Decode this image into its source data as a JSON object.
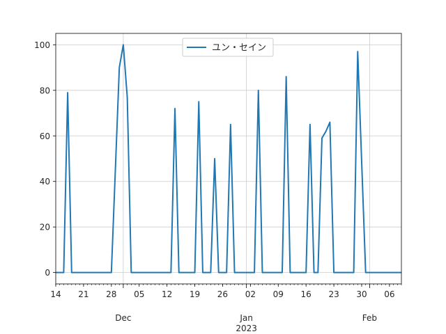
{
  "chart_data": {
    "type": "line",
    "series": [
      {
        "name": "ユン・セイン",
        "color": "#1f77b4",
        "x": [
          "2022-11-14",
          "2022-11-16",
          "2022-11-17",
          "2022-11-18",
          "2022-11-28",
          "2022-11-30",
          "2022-12-01",
          "2022-12-02",
          "2022-12-03",
          "2022-12-13",
          "2022-12-14",
          "2022-12-15",
          "2022-12-19",
          "2022-12-20",
          "2022-12-21",
          "2022-12-23",
          "2022-12-24",
          "2022-12-25",
          "2022-12-27",
          "2022-12-28",
          "2022-12-29",
          "2023-01-03",
          "2023-01-04",
          "2023-01-05",
          "2023-01-10",
          "2023-01-11",
          "2023-01-12",
          "2023-01-16",
          "2023-01-17",
          "2023-01-18",
          "2023-01-19",
          "2023-01-20",
          "2023-01-21",
          "2023-01-22",
          "2023-01-23",
          "2023-01-28",
          "2023-01-29",
          "2023-01-31",
          "2023-02-09"
        ],
        "y": [
          0,
          0,
          79,
          0,
          0,
          90,
          100,
          77,
          0,
          0,
          72,
          0,
          0,
          75,
          0,
          0,
          50,
          0,
          0,
          65,
          0,
          0,
          80,
          0,
          0,
          86,
          0,
          0,
          65,
          0,
          0,
          59,
          62,
          66,
          0,
          0,
          97,
          0,
          0
        ]
      }
    ],
    "x_axis": {
      "type": "date",
      "range": [
        "2022-11-14",
        "2023-02-09"
      ],
      "minor_ticks": [
        "2022-11-14",
        "2022-11-21",
        "2022-11-28",
        "2022-12-05",
        "2022-12-12",
        "2022-12-19",
        "2022-12-26",
        "2023-01-02",
        "2023-01-09",
        "2023-01-16",
        "2023-01-23",
        "2023-01-30",
        "2023-02-06"
      ],
      "minor_tick_labels": [
        "14",
        "21",
        "28",
        "05",
        "12",
        "19",
        "26",
        "02",
        "09",
        "16",
        "23",
        "30",
        "06"
      ],
      "major_ticks": [
        "2022-12-01",
        "2023-01-01",
        "2023-02-01"
      ],
      "major_tick_labels": [
        "Dec",
        "Jan",
        "Feb"
      ],
      "year_label": "2023"
    },
    "y_axis": {
      "range": [
        -5,
        105
      ],
      "ticks": [
        0,
        20,
        40,
        60,
        80,
        100
      ],
      "tick_labels": [
        "0",
        "20",
        "40",
        "60",
        "80",
        "100"
      ]
    },
    "grid": true,
    "legend": "upper center"
  }
}
